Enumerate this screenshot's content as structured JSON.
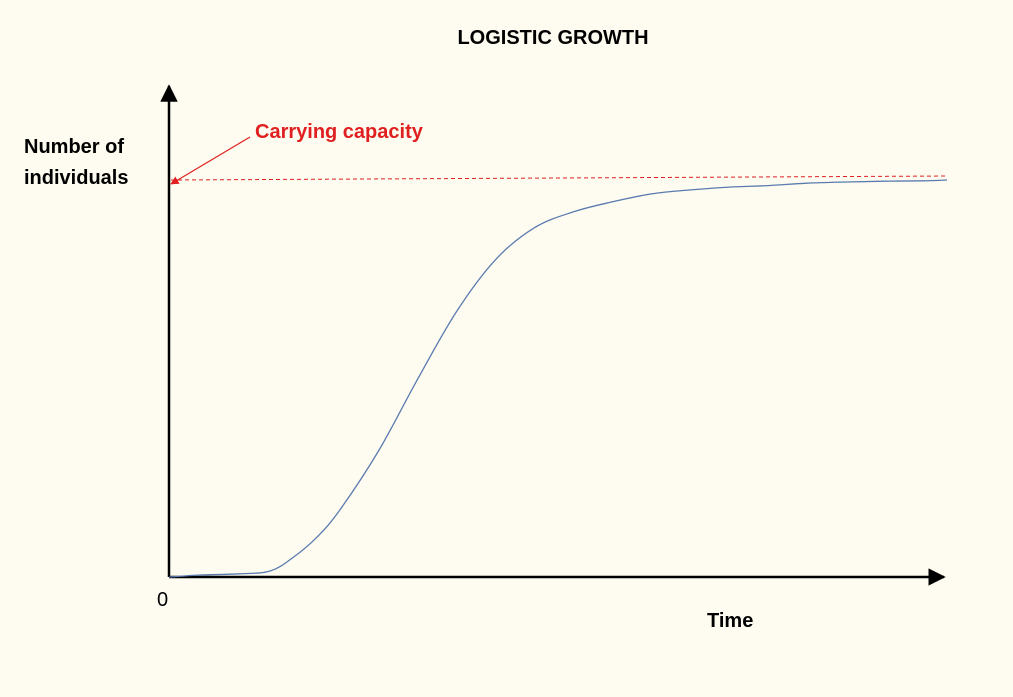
{
  "chart_data": {
    "type": "line",
    "title": "LOGISTIC GROWTH",
    "xlabel": "Time",
    "ylabel_lines": [
      "Number of",
      "individuals"
    ],
    "origin_label": "0",
    "xlim": [
      0,
      100
    ],
    "ylim": [
      0,
      100
    ],
    "grid": false,
    "legend": "none",
    "series": [
      {
        "color": "#5b7bb0",
        "x": [
          0,
          4,
          9,
          13,
          16,
          19,
          22,
          27,
          32,
          37,
          42,
          47,
          52,
          57,
          62,
          67,
          72,
          77,
          82,
          87,
          92,
          97,
          100
        ],
        "y": [
          0,
          0.5,
          0.8,
          1.5,
          5,
          10,
          17,
          32,
          50,
          67,
          80,
          88,
          92,
          94.5,
          96.5,
          97.5,
          98.2,
          98.6,
          99.2,
          99.5,
          99.7,
          99.8,
          100
        ]
      }
    ],
    "carrying_capacity": {
      "label": "Carrying capacity",
      "color": "#e02020",
      "y_start": 100,
      "y_end": 101
    }
  }
}
